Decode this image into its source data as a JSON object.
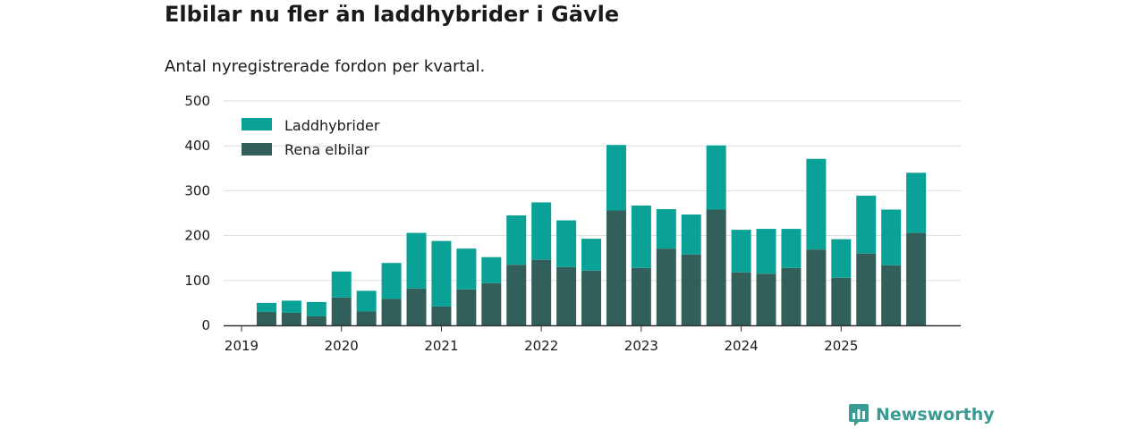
{
  "title": "Elbilar nu fler än laddhybrider i Gävle",
  "subtitle": "Antal nyregistrerade fordon per kvartal.",
  "brand": {
    "name": "Newsworthy",
    "icon": "bar-chart-icon"
  },
  "colors": {
    "laddhybrider": "#0aa197",
    "rena_elbilar": "#335f5a",
    "grid": "#dddddd",
    "axis": "#333333",
    "brand": "#3a9b92"
  },
  "chart_data": {
    "type": "bar",
    "stacked": true,
    "title": "Elbilar nu fler än laddhybrider i Gävle",
    "subtitle": "Antal nyregistrerade fordon per kvartal.",
    "xlabel": "",
    "ylabel": "",
    "ylim": [
      0,
      500
    ],
    "yticks": [
      0,
      100,
      200,
      300,
      400,
      500
    ],
    "xticks": [
      "2019",
      "2020",
      "2021",
      "2022",
      "2023",
      "2024",
      "2025"
    ],
    "legend_position": "top-left",
    "categories": [
      "2019 Q1",
      "2019 Q2",
      "2019 Q3",
      "2019 Q4",
      "2020 Q1",
      "2020 Q2",
      "2020 Q3",
      "2020 Q4",
      "2021 Q1",
      "2021 Q2",
      "2021 Q3",
      "2021 Q4",
      "2022 Q1",
      "2022 Q2",
      "2022 Q3",
      "2022 Q4",
      "2023 Q1",
      "2023 Q2",
      "2023 Q3",
      "2023 Q4",
      "2024 Q1",
      "2024 Q2",
      "2024 Q3",
      "2024 Q4",
      "2025 Q1",
      "2025 Q2",
      "2025 Q3",
      "2025 Q4"
    ],
    "series": [
      {
        "name": "Rena elbilar",
        "values": [
          0,
          30,
          28,
          20,
          62,
          31,
          59,
          82,
          42,
          80,
          94,
          135,
          146,
          130,
          122,
          256,
          128,
          171,
          158,
          258,
          118,
          115,
          128,
          169,
          106,
          160,
          134,
          206
        ]
      },
      {
        "name": "Laddhybrider",
        "values": [
          0,
          20,
          27,
          32,
          58,
          46,
          80,
          124,
          146,
          91,
          58,
          110,
          128,
          104,
          71,
          146,
          139,
          88,
          89,
          143,
          95,
          100,
          87,
          202,
          86,
          129,
          124,
          134
        ]
      }
    ],
    "legend": [
      "Laddhybrider",
      "Rena elbilar"
    ]
  }
}
